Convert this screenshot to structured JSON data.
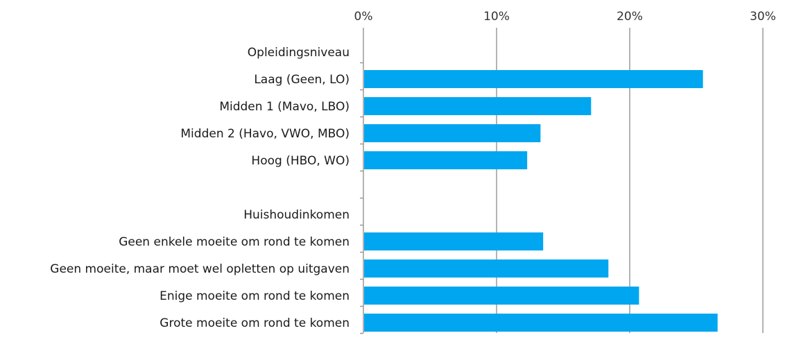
{
  "chart_data": {
    "type": "bar",
    "orientation": "horizontal",
    "categories": [
      "Opleidingsniveau",
      "Laag (Geen, LO)",
      "Midden 1 (Mavo, LBO)",
      "Midden 2 (Havo, VWO, MBO)",
      "Hoog (HBO, WO)",
      "",
      "Huishoudinkomen",
      "Geen enkele moeite om rond te komen",
      "Geen moeite, maar moet wel opletten op uitgaven",
      "Enige moeite om rond te komen",
      "Grote moeite om rond te komen"
    ],
    "values": [
      null,
      25.5,
      17.1,
      13.3,
      12.3,
      null,
      null,
      13.5,
      18.4,
      20.7,
      26.6
    ],
    "xlim": [
      0,
      30
    ],
    "xticks": [
      0,
      10,
      20,
      30
    ],
    "tick_labels": [
      "0%",
      "10%",
      "20%",
      "30%"
    ],
    "x_axis_position": "top",
    "grid": true,
    "legend": "none",
    "bar_color": "#00a6f0",
    "title": "",
    "xlabel": "",
    "ylabel": ""
  }
}
